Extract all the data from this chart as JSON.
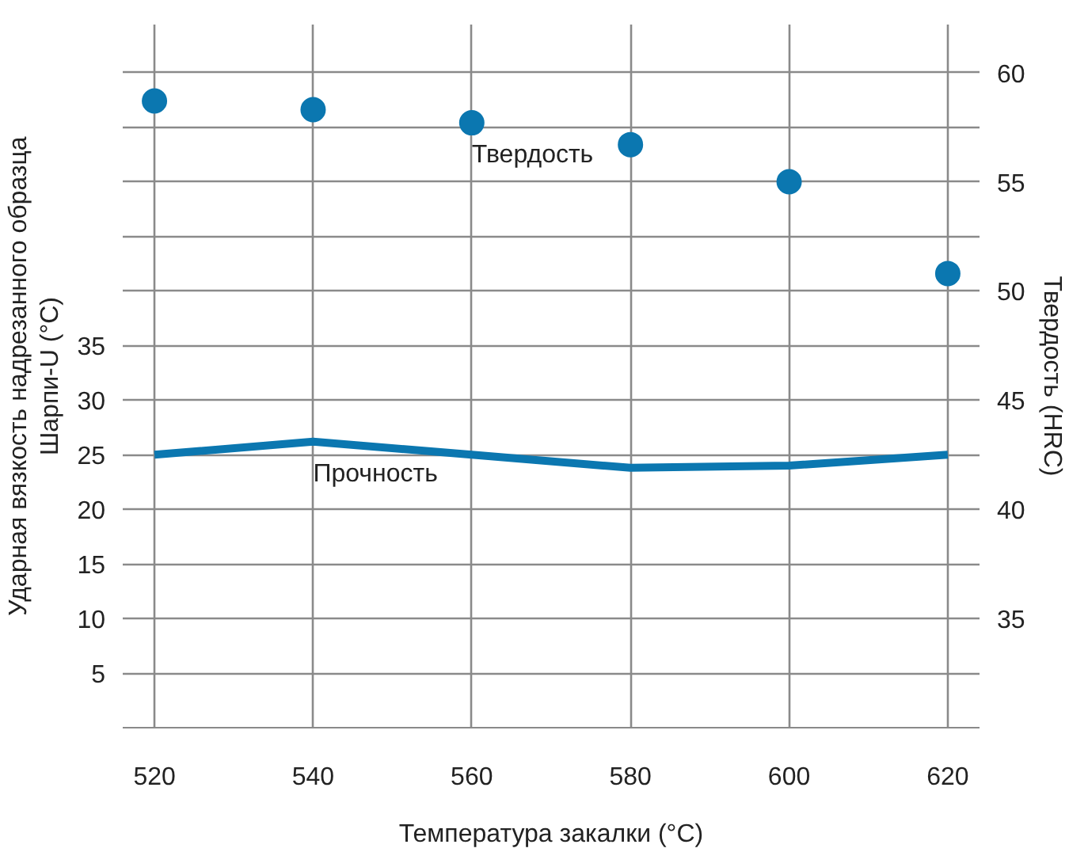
{
  "chart_data": {
    "type": "line",
    "x": [
      520,
      540,
      560,
      580,
      600,
      620
    ],
    "xlabel": "Температура закалки (°C)",
    "ylabel": "Ударная вязкость надрезанного образца\nШарпи-U (°C)",
    "y2label": "Твердость (HRC)",
    "series": [
      {
        "name": "Прочность",
        "color": "#0b77b0",
        "values": [
          25,
          26.2,
          25,
          23.8,
          24,
          25
        ]
      },
      {
        "name": "Твердость",
        "type": "scatter",
        "marker": "circle",
        "axis": "y2",
        "color": "#0b77b0",
        "values": [
          58.7,
          58.3,
          57.7,
          56.7,
          55.0,
          50.8
        ]
      }
    ],
    "xlim": [
      516,
      624
    ],
    "xticks": [
      520,
      540,
      560,
      580,
      600,
      620
    ],
    "ylim": [
      0,
      64.4
    ],
    "yticks": [
      5,
      10,
      15,
      20,
      25,
      30,
      35,
      {
        "value": 40,
        "label": null
      },
      {
        "value": 45,
        "label": null
      },
      {
        "value": 50,
        "label": null
      },
      {
        "value": 55,
        "label": null
      },
      {
        "value": 60,
        "label": null
      }
    ],
    "y2lim": [
      30,
      62.2
    ],
    "y2ticks": [
      35,
      40,
      45,
      50,
      55,
      60
    ],
    "grid": true
  }
}
